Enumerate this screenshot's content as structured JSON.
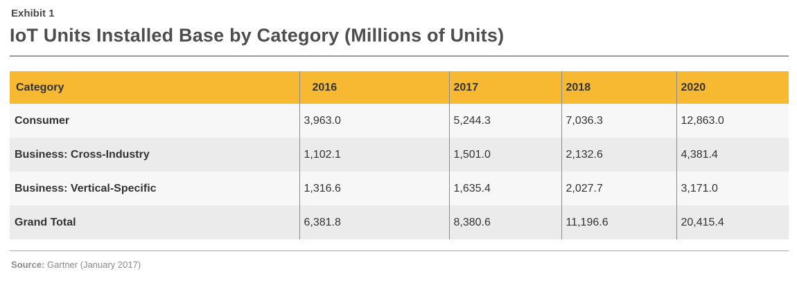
{
  "exhibit_label": "Exhibit 1",
  "title": "IoT Units Installed Base by Category (Millions of Units)",
  "source_label": "Source:",
  "source_text": "Gartner (January 2017)",
  "chart_data": {
    "type": "table",
    "title": "IoT Units Installed Base by Category (Millions of Units)",
    "columns": [
      "Category",
      "2016",
      "2017",
      "2018",
      "2020"
    ],
    "rows": [
      [
        "Consumer",
        "3,963.0",
        "5,244.3",
        "7,036.3",
        "12,863.0"
      ],
      [
        "Business: Cross-Industry",
        "1,102.1",
        "1,501.0",
        "2,132.6",
        "4,381.4"
      ],
      [
        "Business: Vertical-Specific",
        "1,316.6",
        "1,635.4",
        "2,027.7",
        "3,171.0"
      ],
      [
        "Grand Total",
        "6,381.8",
        "8,380.6",
        "11,196.6",
        "20,415.4"
      ]
    ],
    "header_color": "#f6b931",
    "row_colors": [
      "#f7f7f7",
      "#ebebeb"
    ]
  }
}
